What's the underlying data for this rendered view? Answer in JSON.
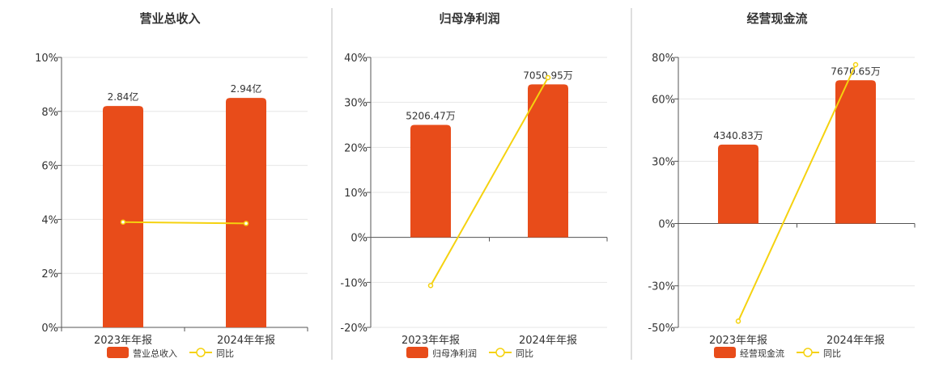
{
  "colors": {
    "bar": "#e84c1a",
    "line": "#f5d20f",
    "grid": "#e6e6e6",
    "axis": "#555555",
    "divider": "#bdbdbd",
    "text": "#333333"
  },
  "legend_line_label": "同比",
  "chart_data": [
    {
      "type": "bar",
      "title": "营业总收入",
      "categories": [
        "2023年年报",
        "2024年年报"
      ],
      "series": [
        {
          "name": "营业总收入",
          "type": "bar",
          "labels": [
            "2.84亿",
            "2.94亿"
          ]
        },
        {
          "name": "同比",
          "type": "line",
          "values": [
            3.9,
            3.85
          ]
        }
      ],
      "bar_heights_on_axis": [
        8.2,
        8.5
      ],
      "y_ticks": [
        "10%",
        "8%",
        "6%",
        "4%",
        "2%",
        "0%"
      ],
      "ylim": [
        0,
        10
      ],
      "grid": true,
      "legend": "bottom"
    },
    {
      "type": "bar",
      "title": "归母净利润",
      "categories": [
        "2023年年报",
        "2024年年报"
      ],
      "series": [
        {
          "name": "归母净利润",
          "type": "bar",
          "labels": [
            "5206.47万",
            "7050.95万"
          ]
        },
        {
          "name": "同比",
          "type": "line",
          "values": [
            -10.7,
            35.5
          ]
        }
      ],
      "bar_heights_on_axis": [
        25,
        34
      ],
      "y_ticks": [
        "40%",
        "30%",
        "20%",
        "10%",
        "0%",
        "-10%",
        "-20%"
      ],
      "ylim": [
        -20,
        40
      ],
      "grid": true,
      "legend": "bottom"
    },
    {
      "type": "bar",
      "title": "经营现金流",
      "categories": [
        "2023年年报",
        "2024年年报"
      ],
      "series": [
        {
          "name": "经营现金流",
          "type": "bar",
          "labels": [
            "4340.83万",
            "7670.65万"
          ]
        },
        {
          "name": "同比",
          "type": "line",
          "values": [
            -47,
            76.5
          ]
        }
      ],
      "bar_heights_on_axis": [
        38,
        69
      ],
      "y_ticks": [
        "80%",
        "60%",
        "30%",
        "0%",
        "-30%",
        "-50%"
      ],
      "y_tick_values": [
        80,
        60,
        30,
        0,
        -30,
        -50
      ],
      "ylim": [
        -50,
        80
      ],
      "grid": true,
      "legend": "bottom"
    }
  ]
}
